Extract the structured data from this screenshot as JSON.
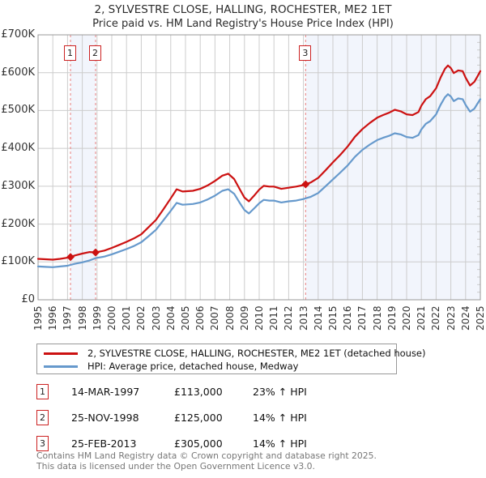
{
  "header": {
    "title": "2, SYLVESTRE CLOSE, HALLING, ROCHESTER, ME2 1ET",
    "subtitle": "Price paid vs. HM Land Registry's House Price Index (HPI)"
  },
  "chart_data": {
    "type": "line",
    "title": "2, SYLVESTRE CLOSE, HALLING, ROCHESTER, ME2 1ET",
    "subtitle": "Price paid vs. HM Land Registry's House Price Index (HPI)",
    "xlim": [
      1995,
      2025
    ],
    "ylim": [
      0,
      700000
    ],
    "grid": true,
    "legend_position": "bottom",
    "colors": {
      "grid": "#cccccc",
      "border": "#999999",
      "shade": "#f2f5fc",
      "dashed": "#e88080",
      "price_line": "#cc1111",
      "hpi_line": "#6699cc"
    },
    "x_ticks": [
      1995,
      1996,
      1997,
      1998,
      1999,
      2000,
      2001,
      2002,
      2003,
      2004,
      2005,
      2006,
      2007,
      2008,
      2009,
      2010,
      2011,
      2012,
      2013,
      2014,
      2015,
      2016,
      2017,
      2018,
      2019,
      2020,
      2021,
      2022,
      2023,
      2024,
      2025
    ],
    "y_ticks": [
      [
        0,
        "£0"
      ],
      [
        100000,
        "£100K"
      ],
      [
        200000,
        "£200K"
      ],
      [
        300000,
        "£300K"
      ],
      [
        400000,
        "£400K"
      ],
      [
        500000,
        "£500K"
      ],
      [
        600000,
        "£600K"
      ],
      [
        700000,
        "£700K"
      ]
    ],
    "shaded_regions": [
      [
        1997.2,
        1998.9
      ],
      [
        2013.15,
        2025
      ]
    ],
    "sales": [
      {
        "n": "1",
        "year": 1997.2,
        "price": 113000
      },
      {
        "n": "2",
        "year": 1998.9,
        "price": 125000
      },
      {
        "n": "3",
        "year": 2013.15,
        "price": 305000
      }
    ],
    "series": [
      {
        "name": "2, SYLVESTRE CLOSE, HALLING, ROCHESTER, ME2 1ET (detached house)",
        "color": "#cc1111",
        "points": [
          [
            1995,
            108000
          ],
          [
            1995.5,
            107000
          ],
          [
            1996,
            106000
          ],
          [
            1996.5,
            108000
          ],
          [
            1997,
            111000
          ],
          [
            1997.2,
            113000
          ],
          [
            1997.5,
            117000
          ],
          [
            1998,
            122000
          ],
          [
            1998.5,
            126000
          ],
          [
            1998.9,
            125000
          ],
          [
            1999.5,
            130000
          ],
          [
            2000,
            137000
          ],
          [
            2000.5,
            145000
          ],
          [
            2001,
            153000
          ],
          [
            2001.5,
            162000
          ],
          [
            2002,
            173000
          ],
          [
            2002.5,
            192000
          ],
          [
            2003,
            211000
          ],
          [
            2003.5,
            239000
          ],
          [
            2004,
            268000
          ],
          [
            2004.4,
            292000
          ],
          [
            2004.8,
            286000
          ],
          [
            2005.5,
            288000
          ],
          [
            2006,
            293000
          ],
          [
            2006.5,
            302000
          ],
          [
            2007,
            314000
          ],
          [
            2007.5,
            328000
          ],
          [
            2007.9,
            333000
          ],
          [
            2008.3,
            319000
          ],
          [
            2008.7,
            291000
          ],
          [
            2009,
            270000
          ],
          [
            2009.3,
            260000
          ],
          [
            2009.7,
            277000
          ],
          [
            2010,
            291000
          ],
          [
            2010.3,
            301000
          ],
          [
            2010.7,
            299000
          ],
          [
            2011,
            299000
          ],
          [
            2011.5,
            293000
          ],
          [
            2012,
            296000
          ],
          [
            2012.5,
            299000
          ],
          [
            2013,
            303000
          ],
          [
            2013.15,
            305000
          ],
          [
            2013.5,
            310000
          ],
          [
            2014,
            322000
          ],
          [
            2014.5,
            342000
          ],
          [
            2015,
            363000
          ],
          [
            2015.5,
            383000
          ],
          [
            2016,
            405000
          ],
          [
            2016.5,
            431000
          ],
          [
            2017,
            451000
          ],
          [
            2017.5,
            467000
          ],
          [
            2018,
            481000
          ],
          [
            2018.4,
            488000
          ],
          [
            2018.8,
            494000
          ],
          [
            2019.2,
            502000
          ],
          [
            2019.6,
            498000
          ],
          [
            2020,
            490000
          ],
          [
            2020.4,
            488000
          ],
          [
            2020.8,
            496000
          ],
          [
            2021,
            513000
          ],
          [
            2021.3,
            530000
          ],
          [
            2021.6,
            538000
          ],
          [
            2022,
            559000
          ],
          [
            2022.3,
            587000
          ],
          [
            2022.6,
            610000
          ],
          [
            2022.8,
            619000
          ],
          [
            2023,
            612000
          ],
          [
            2023.2,
            599000
          ],
          [
            2023.5,
            606000
          ],
          [
            2023.8,
            604000
          ],
          [
            2024,
            587000
          ],
          [
            2024.3,
            566000
          ],
          [
            2024.6,
            576000
          ],
          [
            2024.8,
            590000
          ],
          [
            2025,
            604000
          ]
        ]
      },
      {
        "name": "HPI: Average price, detached house, Medway",
        "color": "#6699cc",
        "points": [
          [
            1995,
            88000
          ],
          [
            1995.5,
            87000
          ],
          [
            1996,
            86000
          ],
          [
            1996.5,
            88000
          ],
          [
            1997,
            90000
          ],
          [
            1997.2,
            92000
          ],
          [
            1997.5,
            95000
          ],
          [
            1998,
            99000
          ],
          [
            1998.5,
            104000
          ],
          [
            1998.9,
            110000
          ],
          [
            1999.5,
            114000
          ],
          [
            2000,
            120000
          ],
          [
            2000.5,
            127000
          ],
          [
            2001,
            134000
          ],
          [
            2001.5,
            142000
          ],
          [
            2002,
            152000
          ],
          [
            2002.5,
            168000
          ],
          [
            2003,
            185000
          ],
          [
            2003.5,
            210000
          ],
          [
            2004,
            235000
          ],
          [
            2004.4,
            256000
          ],
          [
            2004.8,
            251000
          ],
          [
            2005.5,
            253000
          ],
          [
            2006,
            257000
          ],
          [
            2006.5,
            265000
          ],
          [
            2007,
            275000
          ],
          [
            2007.5,
            288000
          ],
          [
            2007.9,
            292000
          ],
          [
            2008.3,
            280000
          ],
          [
            2008.7,
            255000
          ],
          [
            2009,
            237000
          ],
          [
            2009.3,
            228000
          ],
          [
            2009.7,
            243000
          ],
          [
            2010,
            255000
          ],
          [
            2010.3,
            264000
          ],
          [
            2010.7,
            262000
          ],
          [
            2011,
            262000
          ],
          [
            2011.5,
            257000
          ],
          [
            2012,
            260000
          ],
          [
            2012.5,
            262000
          ],
          [
            2013,
            266000
          ],
          [
            2013.15,
            268000
          ],
          [
            2013.5,
            272000
          ],
          [
            2014,
            282000
          ],
          [
            2014.5,
            300000
          ],
          [
            2015,
            318000
          ],
          [
            2015.5,
            336000
          ],
          [
            2016,
            355000
          ],
          [
            2016.5,
            378000
          ],
          [
            2017,
            396000
          ],
          [
            2017.5,
            410000
          ],
          [
            2018,
            422000
          ],
          [
            2018.4,
            428000
          ],
          [
            2018.8,
            433000
          ],
          [
            2019.2,
            440000
          ],
          [
            2019.6,
            437000
          ],
          [
            2020,
            430000
          ],
          [
            2020.4,
            428000
          ],
          [
            2020.8,
            435000
          ],
          [
            2021,
            450000
          ],
          [
            2021.3,
            465000
          ],
          [
            2021.6,
            472000
          ],
          [
            2022,
            490000
          ],
          [
            2022.3,
            515000
          ],
          [
            2022.6,
            535000
          ],
          [
            2022.8,
            543000
          ],
          [
            2023,
            537000
          ],
          [
            2023.2,
            525000
          ],
          [
            2023.5,
            532000
          ],
          [
            2023.8,
            530000
          ],
          [
            2024,
            515000
          ],
          [
            2024.3,
            497000
          ],
          [
            2024.6,
            505000
          ],
          [
            2024.8,
            518000
          ],
          [
            2025,
            530000
          ]
        ]
      }
    ]
  },
  "legend": {
    "series": [
      {
        "label": "2, SYLVESTRE CLOSE, HALLING, ROCHESTER, ME2 1ET (detached house)",
        "color": "#cc1111"
      },
      {
        "label": "HPI: Average price, detached house, Medway",
        "color": "#6699cc"
      }
    ]
  },
  "transactions": [
    {
      "n": "1",
      "date": "14-MAR-1997",
      "price": "£113,000",
      "hpi": "23% ↑ HPI"
    },
    {
      "n": "2",
      "date": "25-NOV-1998",
      "price": "£125,000",
      "hpi": "14% ↑ HPI"
    },
    {
      "n": "3",
      "date": "25-FEB-2013",
      "price": "£305,000",
      "hpi": "14% ↑ HPI"
    }
  ],
  "footer": {
    "line1": "Contains HM Land Registry data © Crown copyright and database right 2025.",
    "line2": "This data is licensed under the Open Government Licence v3.0."
  }
}
